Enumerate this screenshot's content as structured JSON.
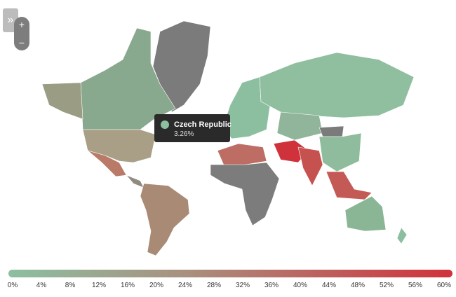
{
  "controls": {
    "expand": "»",
    "zoom_in": "+",
    "zoom_out": "−"
  },
  "tooltip": {
    "country": "Czech Republic",
    "value": "3.26%"
  },
  "legend": {
    "ticks": [
      "0%",
      "4%",
      "8%",
      "12%",
      "16%",
      "20%",
      "24%",
      "28%",
      "32%",
      "36%",
      "40%",
      "44%",
      "48%",
      "52%",
      "56%",
      "60%"
    ]
  }
}
